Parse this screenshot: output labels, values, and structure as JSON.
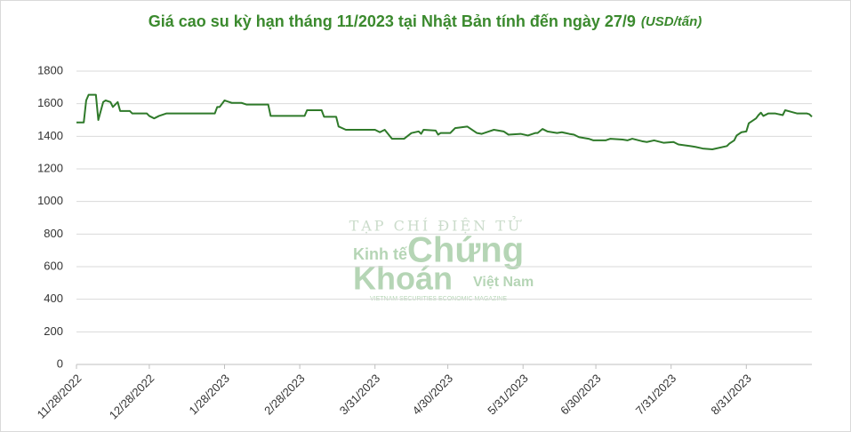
{
  "chart_data": {
    "type": "line",
    "title": "Giá cao su kỳ hạn tháng 11/2023 tại Nhật Bản tính đến ngày 27/9",
    "unit": "(USD/tấn)",
    "color": "#2f7a2a",
    "x": [
      "11/28/2022",
      "12/1/2022",
      "12/2/2022",
      "12/3/2022",
      "12/6/2022",
      "12/7/2022",
      "12/9/2022",
      "12/10/2022",
      "12/12/2022",
      "12/13/2022",
      "12/15/2022",
      "12/16/2022",
      "12/20/2022",
      "12/21/2022",
      "12/27/2022",
      "12/28/2022",
      "12/30/2022",
      "1/1/2023",
      "1/4/2023",
      "1/24/2023",
      "1/25/2023",
      "1/26/2023",
      "1/28/2023",
      "1/31/2023",
      "2/4/2023",
      "2/6/2023",
      "2/15/2023",
      "2/16/2023",
      "3/2/2023",
      "3/3/2023",
      "3/9/2023",
      "3/10/2023",
      "3/15/2023",
      "3/16/2023",
      "3/19/2023",
      "3/31/2023",
      "4/2/2023",
      "4/4/2023",
      "4/7/2023",
      "4/12/2023",
      "4/15/2023",
      "4/18/2023",
      "4/19/2023",
      "4/20/2023",
      "4/25/2023",
      "4/26/2023",
      "4/27/2023",
      "5/1/2023",
      "5/3/2023",
      "5/8/2023",
      "5/12/2023",
      "5/14/2023",
      "5/17/2023",
      "5/19/2023",
      "5/23/2023",
      "5/25/2023",
      "5/30/2023",
      "6/2/2023",
      "6/5/2023",
      "6/6/2023",
      "6/8/2023",
      "6/10/2023",
      "6/14/2023",
      "6/16/2023",
      "6/19/2023",
      "6/21/2023",
      "6/23/2023",
      "6/27/2023",
      "6/29/2023",
      "7/4/2023",
      "7/6/2023",
      "7/11/2023",
      "7/13/2023",
      "7/15/2023",
      "7/19/2023",
      "7/21/2023",
      "7/24/2023",
      "7/28/2023",
      "8/1/2023",
      "8/3/2023",
      "8/8/2023",
      "8/10/2023",
      "8/13/2023",
      "8/17/2023",
      "8/23/2023",
      "8/24/2023",
      "8/26/2023",
      "8/27/2023",
      "8/29/2023",
      "8/31/2023",
      "9/1/2023",
      "9/4/2023",
      "9/5/2023",
      "9/6/2023",
      "9/7/2023",
      "9/9/2023",
      "9/12/2023",
      "9/15/2023",
      "9/16/2023",
      "9/21/2023",
      "9/25/2023",
      "9/26/2023",
      "9/27/2023"
    ],
    "values": [
      1485,
      1485,
      1620,
      1655,
      1655,
      1500,
      1610,
      1620,
      1610,
      1580,
      1610,
      1555,
      1555,
      1540,
      1540,
      1525,
      1510,
      1525,
      1540,
      1540,
      1580,
      1580,
      1620,
      1605,
      1605,
      1595,
      1595,
      1525,
      1525,
      1560,
      1560,
      1520,
      1520,
      1460,
      1440,
      1440,
      1425,
      1440,
      1385,
      1385,
      1420,
      1430,
      1415,
      1440,
      1435,
      1410,
      1420,
      1420,
      1450,
      1460,
      1420,
      1415,
      1430,
      1440,
      1430,
      1410,
      1415,
      1405,
      1420,
      1420,
      1445,
      1430,
      1420,
      1425,
      1415,
      1410,
      1395,
      1385,
      1375,
      1375,
      1385,
      1380,
      1375,
      1385,
      1370,
      1365,
      1375,
      1360,
      1365,
      1350,
      1340,
      1335,
      1325,
      1320,
      1340,
      1355,
      1375,
      1405,
      1425,
      1430,
      1480,
      1510,
      1530,
      1545,
      1525,
      1540,
      1540,
      1530,
      1560,
      1540,
      1540,
      1535,
      1520
    ],
    "xlim": [
      "11/28/2022",
      "9/27/2023"
    ],
    "xticks": [
      "11/28/2022",
      "12/28/2022",
      "1/28/2023",
      "2/28/2023",
      "3/31/2023",
      "4/30/2023",
      "5/31/2023",
      "6/30/2023",
      "7/31/2023",
      "8/31/2023"
    ],
    "ylim": [
      0,
      1800
    ],
    "yticks": [
      0,
      200,
      400,
      600,
      800,
      1000,
      1200,
      1400,
      1600,
      1800
    ],
    "grid": true
  },
  "watermark": {
    "top": "TẠP CHÍ ĐIỆN TỬ",
    "kinhte": "Kinh tế",
    "chung": "Chứng",
    "khoan": "Khoán",
    "vietnam": "Việt Nam",
    "tagline": "VIETNAM SECURITIES ECONOMIC MAGAZINE"
  }
}
